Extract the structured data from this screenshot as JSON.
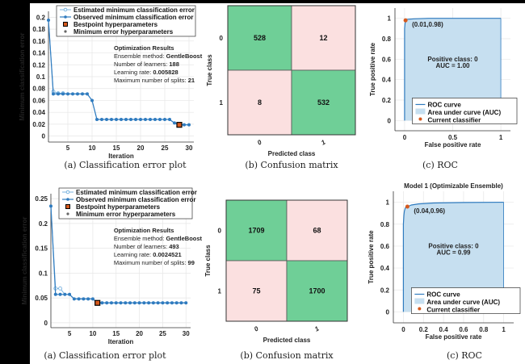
{
  "chart_data": [
    {
      "id": "top_error",
      "type": "line",
      "caption": "(a) Classification error plot",
      "xlabel": "Iteration",
      "ylabel": "Minimum classification error",
      "xlim": [
        1,
        31
      ],
      "ylim": [
        -0.01,
        0.21
      ],
      "xticks": [
        "5",
        "10",
        "15",
        "20",
        "25",
        "30"
      ],
      "xtick_values": [
        5,
        10,
        15,
        20,
        25,
        30
      ],
      "yticks": [
        "0",
        "0.02",
        "0.04",
        "0.06",
        "0.08",
        "0.1",
        "0.12",
        "0.14",
        "0.16",
        "0.18",
        "0.2"
      ],
      "ytick_values": [
        0,
        0.02,
        0.04,
        0.06,
        0.08,
        0.1,
        0.12,
        0.14,
        0.16,
        0.18,
        0.2
      ],
      "grid": true,
      "legend": [
        "Estimated minimum classification error",
        "Observed minimum classification error",
        "Bestpoint hyperparameters",
        "Minimum error hyperparameters"
      ],
      "legend_placement": "top-right",
      "x": [
        1,
        2,
        3,
        4,
        5,
        6,
        7,
        8,
        9,
        10,
        11,
        12,
        13,
        14,
        15,
        16,
        17,
        18,
        19,
        20,
        21,
        22,
        23,
        24,
        25,
        26,
        27,
        28,
        29,
        30
      ],
      "series": [
        {
          "name": "Estimated minimum classification error",
          "values": [
            0.195,
            0.075,
            0.072,
            0.072,
            0.071,
            0.071,
            0.071,
            0.071,
            0.071,
            0.06,
            0.028,
            0.028,
            0.028,
            0.028,
            0.028,
            0.028,
            0.028,
            0.028,
            0.028,
            0.028,
            0.028,
            0.028,
            0.028,
            0.028,
            0.028,
            0.028,
            0.022,
            0.019,
            0.019,
            0.019
          ]
        },
        {
          "name": "Observed minimum classification error",
          "values": [
            0.195,
            0.071,
            0.071,
            0.071,
            0.071,
            0.071,
            0.071,
            0.071,
            0.071,
            0.06,
            0.028,
            0.028,
            0.028,
            0.028,
            0.028,
            0.028,
            0.028,
            0.028,
            0.028,
            0.028,
            0.028,
            0.028,
            0.028,
            0.028,
            0.028,
            0.028,
            0.022,
            0.019,
            0.019,
            0.019
          ]
        }
      ],
      "bestpoint": {
        "x": 28,
        "y": 0.019
      },
      "info": {
        "title": "Optimization Results",
        "lines": [
          {
            "label": "Ensemble method: ",
            "value": "GentleBoost"
          },
          {
            "label": "Number of learners: ",
            "value": "188"
          },
          {
            "label": "Learning rate: ",
            "value": "0.005828"
          },
          {
            "label": "Maximum number of splits: ",
            "value": "21"
          }
        ]
      }
    },
    {
      "id": "top_cm",
      "type": "heatmap",
      "caption": "(b) Confusion matrix",
      "xlabel": "Predicted class",
      "ylabel": "True class",
      "row_labels": [
        "0",
        "1"
      ],
      "col_labels": [
        "0",
        "1"
      ],
      "values": [
        [
          528,
          12
        ],
        [
          8,
          532
        ]
      ]
    },
    {
      "id": "top_roc",
      "type": "area",
      "caption": "(c) ROC",
      "title": "",
      "xlabel": "False positive rate",
      "ylabel": "True positive rate",
      "xlim": [
        -0.1,
        1.1
      ],
      "ylim": [
        -0.1,
        1.1
      ],
      "xticks": [
        "0",
        "0.5",
        "1"
      ],
      "xtick_values": [
        0,
        0.5,
        1
      ],
      "yticks": [
        "0",
        "0.2",
        "0.4",
        "0.6",
        "0.8",
        "1"
      ],
      "ytick_values": [
        0,
        0.2,
        0.4,
        0.6,
        0.8,
        1
      ],
      "curve": {
        "x": [
          0,
          0,
          0.005,
          0.01,
          0.03,
          0.1,
          0.25,
          0.5,
          1
        ],
        "y": [
          0,
          0.9,
          0.95,
          0.98,
          0.99,
          0.995,
          1,
          1,
          1
        ]
      },
      "current_classifier": {
        "x": 0.01,
        "y": 0.98,
        "label": "(0.01,0.98)"
      },
      "annotation": [
        "Positive class: 0",
        "AUC = 1.00"
      ],
      "legend": [
        "ROC curve",
        "Area under curve (AUC)",
        "Current classifier"
      ],
      "legend_placement": "bottom-right"
    },
    {
      "id": "bot_error",
      "type": "line",
      "caption": "(a) Classification error plot",
      "xlabel": "Iteration",
      "ylabel": "Minimum classification error",
      "xlim": [
        1,
        31
      ],
      "ylim": [
        -0.01,
        0.26
      ],
      "xticks": [
        "5",
        "10",
        "15",
        "20",
        "25",
        "30"
      ],
      "xtick_values": [
        5,
        10,
        15,
        20,
        25,
        30
      ],
      "yticks": [
        "0",
        "0.05",
        "0.1",
        "0.15",
        "0.2",
        "0.25"
      ],
      "ytick_values": [
        0,
        0.05,
        0.1,
        0.15,
        0.2,
        0.25
      ],
      "grid": true,
      "legend": [
        "Estimated minimum classification error",
        "Observed minimum classification error",
        "Bestpoint hyperparameters",
        "Minimum error hyperparameters"
      ],
      "legend_placement": "top-right",
      "x": [
        1,
        2,
        3,
        4,
        5,
        6,
        7,
        8,
        9,
        10,
        11,
        12,
        13,
        14,
        15,
        16,
        17,
        18,
        19,
        20,
        21,
        22,
        23,
        24,
        25,
        26,
        27,
        28,
        29,
        30
      ],
      "series": [
        {
          "name": "Estimated minimum classification error",
          "values": [
            0.235,
            0.069,
            0.069,
            0.057,
            0.057,
            0.048,
            0.048,
            0.048,
            0.048,
            0.048,
            0.04,
            0.04,
            0.04,
            0.04,
            0.04,
            0.04,
            0.04,
            0.04,
            0.04,
            0.04,
            0.04,
            0.04,
            0.04,
            0.04,
            0.04,
            0.04,
            0.04,
            0.04,
            0.04,
            0.04
          ]
        },
        {
          "name": "Observed minimum classification error",
          "values": [
            0.235,
            0.057,
            0.057,
            0.057,
            0.057,
            0.048,
            0.048,
            0.048,
            0.048,
            0.048,
            0.04,
            0.04,
            0.04,
            0.04,
            0.04,
            0.04,
            0.04,
            0.04,
            0.04,
            0.04,
            0.04,
            0.04,
            0.04,
            0.04,
            0.04,
            0.04,
            0.04,
            0.04,
            0.04,
            0.04
          ]
        }
      ],
      "bestpoint": {
        "x": 11,
        "y": 0.04
      },
      "info": {
        "title": "Optimization Results",
        "lines": [
          {
            "label": "Ensemble method: ",
            "value": "GentleBoost"
          },
          {
            "label": "Number of learners: ",
            "value": "493"
          },
          {
            "label": "Learning rate: ",
            "value": "0.0024521"
          },
          {
            "label": "Maximum number of splits: ",
            "value": "99"
          }
        ]
      }
    },
    {
      "id": "bot_cm",
      "type": "heatmap",
      "caption": "(b) Confusion matrix",
      "xlabel": "Predicted class",
      "ylabel": "True class",
      "row_labels": [
        "0",
        "1"
      ],
      "col_labels": [
        "0",
        "1"
      ],
      "values": [
        [
          1709,
          68
        ],
        [
          75,
          1700
        ]
      ]
    },
    {
      "id": "bot_roc",
      "type": "area",
      "caption": "(c) ROC",
      "title": "Model 1 (Optimizable Ensemble)",
      "xlabel": "False positive rate",
      "ylabel": "True positive rate",
      "xlim": [
        -0.1,
        1.1
      ],
      "ylim": [
        -0.1,
        1.1
      ],
      "xticks": [
        "0",
        "0.2",
        "0.4",
        "0.6",
        "0.8",
        "1"
      ],
      "xtick_values": [
        0,
        0.2,
        0.4,
        0.6,
        0.8,
        1
      ],
      "yticks": [
        "0",
        "0.2",
        "0.4",
        "0.6",
        "0.8",
        "1"
      ],
      "ytick_values": [
        0,
        0.2,
        0.4,
        0.6,
        0.8,
        1
      ],
      "curve": {
        "x": [
          0,
          0,
          0.005,
          0.01,
          0.02,
          0.04,
          0.08,
          0.15,
          0.3,
          0.6,
          1
        ],
        "y": [
          0,
          0.8,
          0.88,
          0.92,
          0.95,
          0.96,
          0.975,
          0.985,
          0.993,
          0.998,
          1
        ]
      },
      "current_classifier": {
        "x": 0.04,
        "y": 0.96,
        "label": "(0.04,0.96)"
      },
      "annotation": [
        "Positive class: 0",
        "AUC = 0.99"
      ],
      "legend": [
        "ROC curve",
        "Area under curve (AUC)",
        "Current classifier"
      ],
      "legend_placement": "bottom-right"
    }
  ],
  "colors": {
    "line": "#2f7bbf",
    "line_light": "#79b3df",
    "auc_fill": "#c6dff0",
    "marker_best": "#d65a1e",
    "cm_correct": "#6fcf97",
    "cm_wrong": "#fbe0e0",
    "grid": "#e6e6e6"
  }
}
